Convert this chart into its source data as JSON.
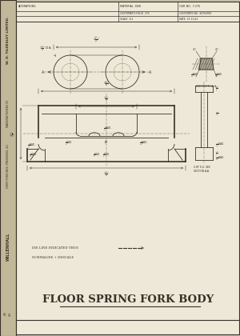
{
  "bg_color": "#c8bfa8",
  "paper_color": "#ede8d8",
  "sidebar_color": "#c0b898",
  "drawing_color": "#3a3028",
  "dim_color": "#4a4038",
  "light_line_color": "#7a6a58",
  "bottom_title": "FLOOR SPRING FORK BODY",
  "header": {
    "col1": "ALTERATIONS",
    "mat": "MATERIAL  EN8",
    "our_no": "OUR NO.  F.275",
    "cust_folio": "CUSTOMER'S FOLIO  175",
    "cust_no": "CUSTOMER'S NO.  SD763/M/2",
    "scale": "SCALE  3/1",
    "date": "DATE  27-11-62"
  },
  "sidebar_lines": [
    "W. H. TILDESLEY LIMITED.",
    "MANUFACTURERS OF",
    "DROP FORGINGS, PRESSINGS, &C.",
    "WILLENHALL"
  ],
  "note_die": "DIE LINE INDICATED THUS",
  "note_normalise": "NORMALISE + DESCALE",
  "section_aa": "SECTION A-A.",
  "section_note": "4 OF S.G. SEE\nSECTION A-A."
}
